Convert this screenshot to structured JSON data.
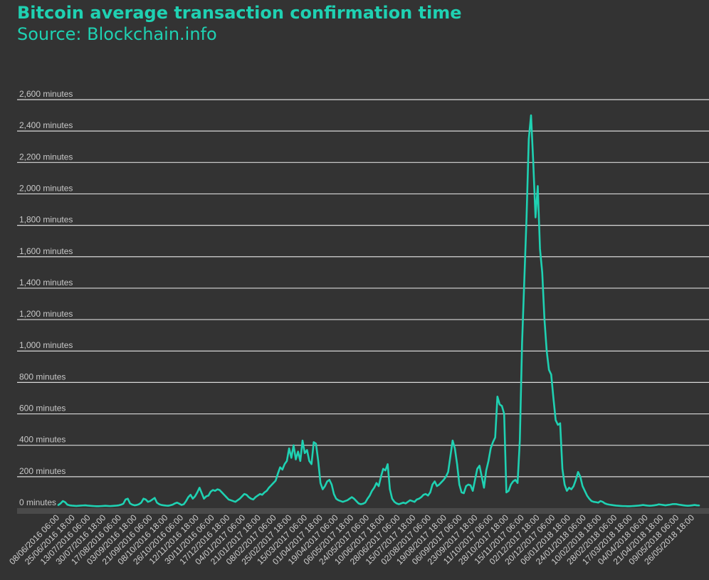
{
  "title": "Bitcoin average transaction confirmation time",
  "subtitle": "Source: Blockchain.info",
  "colors": {
    "background": "#333333",
    "accent": "#1fd1b2",
    "grid": "#d9d9d9",
    "baseline": "#4a4a4a"
  },
  "chart_data": {
    "type": "line",
    "title": "Bitcoin average transaction confirmation time",
    "subtitle": "Source: Blockchain.info",
    "ylim": [
      0,
      2600
    ],
    "grid": true,
    "y_ticks": [
      {
        "value": 0,
        "label": "0 minutes"
      },
      {
        "value": 200,
        "label": "200 minutes"
      },
      {
        "value": 400,
        "label": "400 minutes"
      },
      {
        "value": 600,
        "label": "600 minutes"
      },
      {
        "value": 800,
        "label": "800 minutes"
      },
      {
        "value": 1000,
        "label": "1,000 minutes"
      },
      {
        "value": 1200,
        "label": "1,200 minutes"
      },
      {
        "value": 1400,
        "label": "1,400 minutes"
      },
      {
        "value": 1600,
        "label": "1,600 minutes"
      },
      {
        "value": 1800,
        "label": "1,800 minutes"
      },
      {
        "value": 2000,
        "label": "2,000 minutes"
      },
      {
        "value": 2200,
        "label": "2,200 minutes"
      },
      {
        "value": 2400,
        "label": "2,400 minutes"
      },
      {
        "value": 2600,
        "label": "2,600 minutes"
      }
    ],
    "x_ticks": [
      "08/06/2016 06:00",
      "25/06/2016 18:00",
      "13/07/2016 06:00",
      "30/07/2016 18:00",
      "17/08/2016 06:00",
      "03/09/2016 18:00",
      "21/09/2016 06:00",
      "08/10/2016 18:00",
      "26/10/2016 06:00",
      "12/11/2016 18:00",
      "30/11/2016 06:00",
      "17/12/2016 18:00",
      "04/01/2017 06:00",
      "21/01/2017 18:00",
      "08/02/2017 06:00",
      "25/02/2017 18:00",
      "15/03/2017 06:00",
      "01/04/2017 18:00",
      "19/04/2017 06:00",
      "06/05/2017 18:00",
      "24/05/2017 06:00",
      "10/06/2017 18:00",
      "28/06/2017 06:00",
      "15/07/2017 18:00",
      "02/08/2017 06:00",
      "19/08/2017 18:00",
      "06/09/2017 06:00",
      "23/09/2017 18:00",
      "11/10/2017 06:00",
      "28/10/2017 18:00",
      "15/11/2017 06:00",
      "02/12/2017 18:00",
      "20/12/2017 06:00",
      "06/01/2018 18:00",
      "24/01/2018 06:00",
      "10/02/2018 18:00",
      "28/02/2018 06:00",
      "17/03/2018 18:00",
      "04/04/2018 06:00",
      "21/04/2018 18:00",
      "09/05/2018 06:00",
      "26/05/2018 18:00"
    ],
    "series": [
      {
        "values": [
          20,
          30,
          45,
          38,
          22,
          18,
          16,
          15,
          14,
          15,
          16,
          17,
          18,
          16,
          15,
          14,
          13,
          12,
          12,
          13,
          14,
          15,
          14,
          13,
          14,
          15,
          16,
          18,
          22,
          28,
          55,
          60,
          30,
          22,
          18,
          20,
          25,
          35,
          60,
          55,
          40,
          45,
          55,
          65,
          35,
          25,
          20,
          18,
          16,
          15,
          18,
          22,
          30,
          35,
          28,
          20,
          25,
          45,
          70,
          85,
          60,
          75,
          100,
          130,
          95,
          60,
          75,
          80,
          105,
          115,
          110,
          120,
          115,
          100,
          85,
          70,
          55,
          50,
          45,
          40,
          50,
          60,
          75,
          90,
          85,
          70,
          60,
          55,
          70,
          80,
          90,
          85,
          100,
          110,
          130,
          145,
          160,
          175,
          220,
          260,
          245,
          280,
          300,
          380,
          320,
          400,
          310,
          360,
          300,
          430,
          350,
          370,
          300,
          280,
          420,
          410,
          300,
          160,
          120,
          140,
          170,
          180,
          150,
          90,
          60,
          50,
          45,
          40,
          45,
          50,
          60,
          70,
          60,
          45,
          30,
          25,
          28,
          35,
          60,
          80,
          110,
          130,
          160,
          140,
          200,
          250,
          240,
          280,
          120,
          60,
          40,
          30,
          25,
          30,
          35,
          30,
          40,
          50,
          45,
          40,
          55,
          60,
          70,
          85,
          90,
          80,
          100,
          150,
          170,
          140,
          150,
          165,
          180,
          200,
          230,
          330,
          430,
          380,
          280,
          150,
          100,
          95,
          140,
          150,
          145,
          110,
          180,
          250,
          270,
          200,
          130,
          240,
          300,
          380,
          420,
          450,
          710,
          660,
          650,
          600,
          100,
          110,
          150,
          170,
          180,
          160,
          430,
          1050,
          1450,
          1850,
          2350,
          2500,
          2200,
          1850,
          2050,
          1650,
          1500,
          1200,
          1000,
          880,
          850,
          700,
          560,
          530,
          540,
          250,
          150,
          110,
          130,
          120,
          140,
          180,
          230,
          200,
          140,
          110,
          80,
          60,
          45,
          40,
          38,
          35,
          45,
          40,
          30,
          25,
          22,
          20,
          18,
          16,
          15,
          14,
          13,
          13,
          12,
          12,
          13,
          14,
          15,
          16,
          18,
          20,
          18,
          16,
          15,
          16,
          18,
          20,
          24,
          22,
          20,
          18,
          20,
          22,
          25,
          26,
          25,
          22,
          20,
          18,
          16,
          15,
          16,
          18,
          20,
          18,
          17
        ]
      }
    ]
  }
}
